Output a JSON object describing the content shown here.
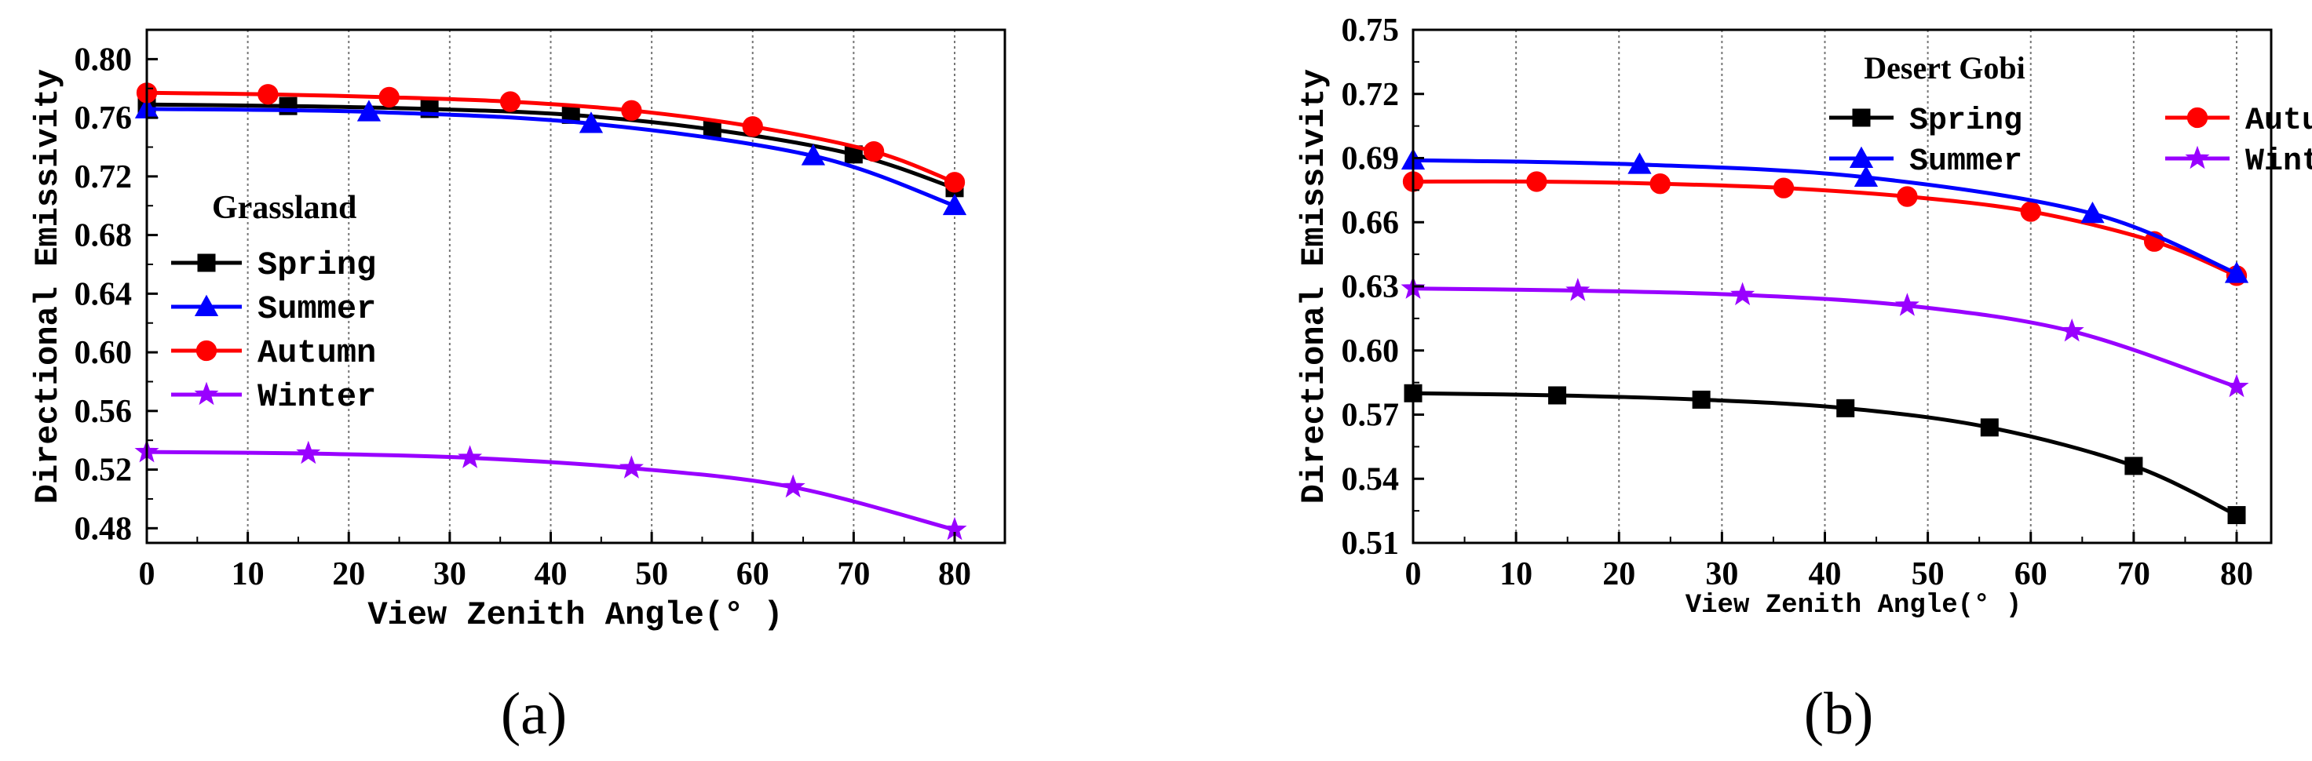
{
  "chart_data": [
    {
      "type": "line",
      "panel_label": "(a)",
      "legend_title": "Grassland",
      "xlabel": "View Zenith Angle(° )",
      "ylabel": "Directional Emissivity",
      "xlim": [
        0,
        80
      ],
      "ylim": [
        0.47,
        0.82
      ],
      "xticks": [
        0,
        10,
        20,
        30,
        40,
        50,
        60,
        70,
        80
      ],
      "xtick_labels": [
        "0",
        "10",
        "20",
        "30",
        "40",
        "50",
        "60",
        "70",
        "80"
      ],
      "yticks": [
        0.48,
        0.52,
        0.56,
        0.6,
        0.64,
        0.68,
        0.72,
        0.76,
        0.8
      ],
      "ytick_labels": [
        "0.48",
        "0.52",
        "0.56",
        "0.60",
        "0.64",
        "0.68",
        "0.72",
        "0.76",
        "0.80"
      ],
      "grid": "vertical dotted",
      "series": [
        {
          "name": "Spring",
          "color": "#000000",
          "marker": "square",
          "x": [
            0,
            14,
            28,
            42,
            56,
            70,
            80
          ],
          "y": [
            0.769,
            0.768,
            0.766,
            0.762,
            0.752,
            0.735,
            0.712
          ]
        },
        {
          "name": "Summer",
          "color": "#0000ff",
          "marker": "triangle",
          "x": [
            0,
            22,
            44,
            66,
            80
          ],
          "y": [
            0.766,
            0.764,
            0.756,
            0.734,
            0.7
          ]
        },
        {
          "name": "Autumn",
          "color": "#ff0000",
          "marker": "circle",
          "x": [
            0,
            12,
            24,
            36,
            48,
            60,
            72,
            80
          ],
          "y": [
            0.777,
            0.776,
            0.774,
            0.771,
            0.765,
            0.754,
            0.737,
            0.716
          ]
        },
        {
          "name": "Winter",
          "color": "#9900ff",
          "marker": "star",
          "x": [
            0,
            16,
            32,
            48,
            64,
            80
          ],
          "y": [
            0.532,
            0.531,
            0.528,
            0.521,
            0.508,
            0.479
          ]
        }
      ]
    },
    {
      "type": "line",
      "panel_label": "(b)",
      "legend_title": "Desert Gobi",
      "xlabel": "View Zenith Angle(° )",
      "ylabel": "Directional Emissivity",
      "xlim": [
        0,
        83
      ],
      "ylim": [
        0.51,
        0.75
      ],
      "xticks": [
        0,
        10,
        20,
        30,
        40,
        50,
        60,
        70,
        80
      ],
      "xtick_labels": [
        "0",
        "10",
        "20",
        "30",
        "40",
        "50",
        "60",
        "70",
        "80"
      ],
      "yticks": [
        0.51,
        0.54,
        0.57,
        0.6,
        0.63,
        0.66,
        0.69,
        0.72,
        0.75
      ],
      "ytick_labels": [
        "0.51",
        "0.54",
        "0.57",
        "0.60",
        "0.63",
        "0.66",
        "0.69",
        "0.72",
        "0.75"
      ],
      "grid": "vertical dotted",
      "series": [
        {
          "name": "Spring",
          "color": "#000000",
          "marker": "square",
          "x": [
            0,
            14,
            28,
            42,
            56,
            70,
            80
          ],
          "y": [
            0.58,
            0.579,
            0.577,
            0.573,
            0.564,
            0.546,
            0.523
          ]
        },
        {
          "name": "Autumn",
          "color": "#ff0000",
          "marker": "circle",
          "x": [
            0,
            12,
            24,
            36,
            48,
            60,
            72,
            80
          ],
          "y": [
            0.679,
            0.679,
            0.678,
            0.676,
            0.672,
            0.665,
            0.651,
            0.635
          ]
        },
        {
          "name": "Summer",
          "color": "#0000ff",
          "marker": "triangle",
          "x": [
            0,
            22,
            44,
            66,
            80
          ],
          "y": [
            0.689,
            0.687,
            0.681,
            0.664,
            0.636
          ]
        },
        {
          "name": "Winter",
          "color": "#9900ff",
          "marker": "star",
          "x": [
            0,
            16,
            32,
            48,
            64,
            80
          ],
          "y": [
            0.629,
            0.628,
            0.626,
            0.621,
            0.609,
            0.583
          ]
        }
      ]
    }
  ]
}
